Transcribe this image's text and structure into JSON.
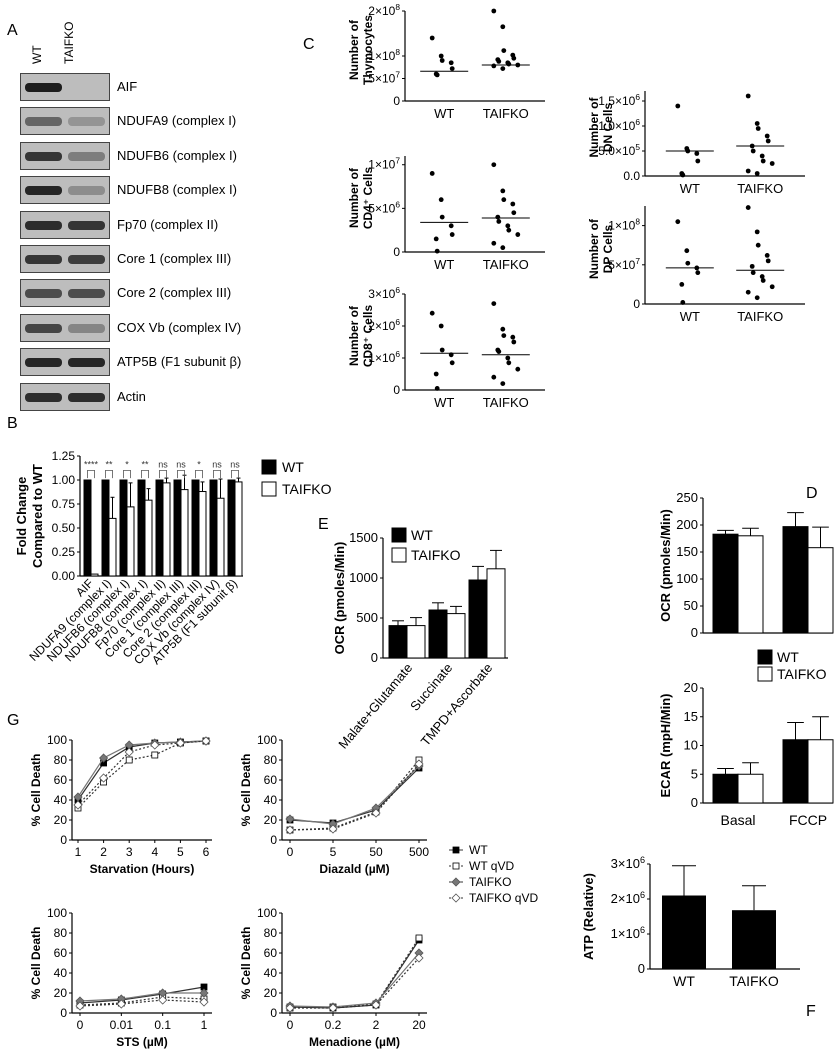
{
  "panels": {
    "A": "A",
    "B": "B",
    "C": "C",
    "D": "D",
    "E": "E",
    "F": "F",
    "G": "G"
  },
  "blot": {
    "lanes": [
      "WT",
      "TAIFKO"
    ],
    "rows": [
      {
        "label": "AIF",
        "wt": 1.0,
        "ko": 0.0
      },
      {
        "label": "NDUFA9 (complex I)",
        "wt": 0.55,
        "ko": 0.25
      },
      {
        "label": "NDUFB6 (complex I)",
        "wt": 0.85,
        "ko": 0.4
      },
      {
        "label": "NDUFB8 (complex I)",
        "wt": 0.95,
        "ko": 0.3
      },
      {
        "label": "Fp70 (complex II)",
        "wt": 0.9,
        "ko": 0.85
      },
      {
        "label": "Core 1 (complex III)",
        "wt": 0.85,
        "ko": 0.8
      },
      {
        "label": "Core 2 (complex III)",
        "wt": 0.7,
        "ko": 0.7
      },
      {
        "label": "COX Vb (complex IV)",
        "wt": 0.75,
        "ko": 0.35
      },
      {
        "label": "ATP5B (F1 subunit β)",
        "wt": 0.95,
        "ko": 0.95
      },
      {
        "label": "Actin",
        "wt": 0.9,
        "ko": 0.9
      }
    ]
  },
  "chart_data": [
    {
      "id": "B",
      "type": "bar",
      "ylabel": "Fold Change Compared to WT",
      "ylim": [
        0,
        1.25
      ],
      "yticks": [
        "0.00",
        "0.25",
        "0.50",
        "0.75",
        "1.00",
        "1.25"
      ],
      "categories": [
        "AIF",
        "NDUFA9 (complex I)",
        "NDUFB6 (complex I)",
        "NDUFB8 (complex I)",
        "Fp70 (complex II)",
        "Core 1 (complex III)",
        "Core 2 (complex III)",
        "COX Vb (complex IV)",
        "ATP5B (F1 subunit β)"
      ],
      "series": [
        {
          "name": "WT",
          "values": [
            1,
            1,
            1,
            1,
            1,
            1,
            1,
            1,
            1
          ],
          "errors": [
            0,
            0,
            0,
            0,
            0,
            0,
            0,
            0,
            0
          ]
        },
        {
          "name": "TAIFKO",
          "values": [
            0.02,
            0.6,
            0.72,
            0.79,
            0.97,
            0.9,
            0.88,
            0.81,
            0.98
          ],
          "errors": [
            0,
            0.22,
            0.25,
            0.12,
            0.05,
            0.15,
            0.1,
            0.2,
            0.04
          ]
        }
      ],
      "significance": [
        "****",
        "**",
        "*",
        "**",
        "ns",
        "ns",
        "*",
        "ns",
        "ns"
      ],
      "legend": "right"
    },
    {
      "id": "C-thymocytes",
      "type": "scatter",
      "ylabel": "Number of Thymocytes",
      "ylim": [
        0,
        200000000
      ],
      "yticks": [
        {
          "v": 0,
          "t": "0"
        },
        {
          "v": 50000000,
          "m": "5",
          "e": "7"
        },
        {
          "v": 100000000,
          "m": "1",
          "e": "8"
        },
        {
          "v": 200000000,
          "m": "2",
          "e": "8"
        }
      ],
      "categories": [
        "WT",
        "TAIFKO"
      ],
      "groups": [
        {
          "name": "WT",
          "values": [
            140000000,
            100000000,
            90000000,
            85000000,
            72000000,
            60000000,
            58000000
          ],
          "mean": 66000000
        },
        {
          "name": "TAIFKO",
          "values": [
            200000000,
            165000000,
            112000000,
            102000000,
            95000000,
            92000000,
            88000000,
            85000000,
            82000000,
            80000000,
            78000000,
            72000000
          ],
          "mean": 80000000
        }
      ]
    },
    {
      "id": "C-DN",
      "type": "scatter",
      "ylabel": "Number of DN Cells",
      "ylim": [
        0,
        1700000
      ],
      "yticks": [
        {
          "v": 0,
          "t": "0.0"
        },
        {
          "v": 500000,
          "m": "5.0",
          "e": "5"
        },
        {
          "v": 1000000,
          "m": "1.0",
          "e": "6"
        },
        {
          "v": 1500000,
          "m": "1.5",
          "e": "6"
        }
      ],
      "categories": [
        "WT",
        "TAIFKO"
      ],
      "groups": [
        {
          "name": "WT",
          "values": [
            1400000,
            550000,
            500000,
            450000,
            300000,
            50000,
            20000
          ],
          "mean": 500000
        },
        {
          "name": "TAIFKO",
          "values": [
            1600000,
            1050000,
            950000,
            800000,
            700000,
            600000,
            500000,
            400000,
            300000,
            250000,
            100000,
            50000
          ],
          "mean": 600000
        }
      ]
    },
    {
      "id": "C-CD4",
      "type": "scatter",
      "ylabel": "Number of CD4⁺ Cells",
      "ylim": [
        0,
        11000000
      ],
      "yticks": [
        {
          "v": 0,
          "t": "0"
        },
        {
          "v": 5000000,
          "m": "5",
          "e": "6"
        },
        {
          "v": 10000000,
          "m": "1",
          "e": "7"
        }
      ],
      "categories": [
        "WT",
        "TAIFKO"
      ],
      "groups": [
        {
          "name": "WT",
          "values": [
            9000000,
            6000000,
            4000000,
            3000000,
            2000000,
            1500000,
            100000
          ],
          "mean": 3400000
        },
        {
          "name": "TAIFKO",
          "values": [
            10000000,
            7000000,
            6000000,
            5500000,
            4500000,
            4000000,
            3500000,
            3000000,
            2500000,
            2000000,
            1000000,
            500000
          ],
          "mean": 3900000
        }
      ]
    },
    {
      "id": "C-DP",
      "type": "scatter",
      "ylabel": "Number of DP Cells",
      "ylim": [
        0,
        125000000
      ],
      "yticks": [
        {
          "v": 0,
          "t": "0"
        },
        {
          "v": 50000000,
          "m": "5",
          "e": "7"
        },
        {
          "v": 100000000,
          "m": "1",
          "e": "8"
        }
      ],
      "categories": [
        "WT",
        "TAIFKO"
      ],
      "groups": [
        {
          "name": "WT",
          "values": [
            105000000,
            68000000,
            52000000,
            46000000,
            40000000,
            25000000,
            2000000
          ],
          "mean": 46000000
        },
        {
          "name": "TAIFKO",
          "values": [
            123000000,
            92000000,
            75000000,
            62000000,
            55000000,
            48000000,
            40000000,
            35000000,
            30000000,
            22000000,
            15000000,
            8000000
          ],
          "mean": 43000000
        }
      ]
    },
    {
      "id": "C-CD8",
      "type": "scatter",
      "ylabel": "Number of CD8⁺ Cells",
      "ylim": [
        0,
        3000000
      ],
      "yticks": [
        {
          "v": 0,
          "t": "0"
        },
        {
          "v": 1000000,
          "m": "1",
          "e": "6"
        },
        {
          "v": 2000000,
          "m": "2",
          "e": "6"
        },
        {
          "v": 3000000,
          "m": "3",
          "e": "6"
        }
      ],
      "categories": [
        "WT",
        "TAIFKO"
      ],
      "groups": [
        {
          "name": "WT",
          "values": [
            2400000,
            2000000,
            1250000,
            1100000,
            850000,
            500000,
            50000
          ],
          "mean": 1150000
        },
        {
          "name": "TAIFKO",
          "values": [
            2700000,
            1900000,
            1700000,
            1650000,
            1500000,
            1250000,
            1200000,
            1000000,
            850000,
            650000,
            400000,
            200000
          ],
          "mean": 1100000
        }
      ]
    },
    {
      "id": "D-OCR",
      "type": "bar",
      "ylabel": "OCR (pmoles/Min)",
      "ylim": [
        0,
        250
      ],
      "yticks": [
        "0",
        "50",
        "100",
        "150",
        "200",
        "250"
      ],
      "categories": [
        "Basal",
        "FCCP"
      ],
      "series": [
        {
          "name": "WT",
          "values": [
            183,
            197
          ],
          "errors": [
            7,
            26
          ]
        },
        {
          "name": "TAIFKO",
          "values": [
            180,
            158
          ],
          "errors": [
            14,
            38
          ]
        }
      ]
    },
    {
      "id": "D-ECAR",
      "type": "bar",
      "ylabel": "ECAR (mpH/Min)",
      "ylim": [
        0,
        20
      ],
      "yticks": [
        "0",
        "5",
        "10",
        "15",
        "20"
      ],
      "categories": [
        "Basal",
        "FCCP"
      ],
      "series": [
        {
          "name": "WT",
          "values": [
            5,
            11
          ],
          "errors": [
            1,
            3
          ]
        },
        {
          "name": "TAIFKO",
          "values": [
            5,
            11
          ],
          "errors": [
            2,
            4
          ]
        }
      ],
      "legend": "top-right"
    },
    {
      "id": "E",
      "type": "bar",
      "ylabel": "OCR (pmoles/Min)",
      "ylim": [
        0,
        1500
      ],
      "yticks": [
        "0",
        "500",
        "1000",
        "1500"
      ],
      "categories": [
        "Malate+Glutamate",
        "Succinate",
        "TMPD+Ascorbate"
      ],
      "series": [
        {
          "name": "WT",
          "values": [
            405,
            600,
            975
          ],
          "errors": [
            60,
            90,
            170
          ]
        },
        {
          "name": "TAIFKO",
          "values": [
            405,
            555,
            1115
          ],
          "errors": [
            100,
            90,
            230
          ]
        }
      ],
      "legend": "top-left"
    },
    {
      "id": "F",
      "type": "bar",
      "ylabel": "ATP (Relative)",
      "ylim": [
        0,
        3000000
      ],
      "yticks": [
        {
          "v": 0,
          "t": "0"
        },
        {
          "v": 1000000,
          "m": "1",
          "e": "6"
        },
        {
          "v": 2000000,
          "m": "2",
          "e": "6"
        },
        {
          "v": 3000000,
          "m": "3",
          "e": "6"
        }
      ],
      "categories": [
        "WT",
        "TAIFKO"
      ],
      "values": [
        2100000,
        1680000
      ],
      "errors": [
        850000,
        700000
      ]
    },
    {
      "id": "G-starvation",
      "type": "line",
      "xlabel": "Starvation (Hours)",
      "ylabel": "% Cell Death",
      "x": [
        "1",
        "2",
        "3",
        "4",
        "5",
        "6"
      ],
      "ylim": [
        0,
        100
      ],
      "yticks": [
        "0",
        "20",
        "40",
        "60",
        "80",
        "100"
      ],
      "series": [
        {
          "name": "WT",
          "values": [
            40,
            77,
            93,
            97,
            98,
            99
          ]
        },
        {
          "name": "WT qVD",
          "values": [
            32,
            58,
            80,
            85,
            97,
            99
          ]
        },
        {
          "name": "TAIFKO",
          "values": [
            43,
            82,
            95,
            97,
            98,
            99
          ]
        },
        {
          "name": "TAIFKO qVD",
          "values": [
            35,
            62,
            88,
            95,
            97,
            99
          ]
        }
      ]
    },
    {
      "id": "G-diazald",
      "type": "line",
      "xlabel": "Diazald (µM)",
      "ylabel": "% Cell Death",
      "x": [
        "0",
        "5",
        "50",
        "500"
      ],
      "ylim": [
        0,
        100
      ],
      "yticks": [
        "0",
        "20",
        "40",
        "60",
        "80",
        "100"
      ],
      "series": [
        {
          "name": "WT",
          "values": [
            20,
            17,
            30,
            72
          ]
        },
        {
          "name": "WT qVD",
          "values": [
            10,
            12,
            28,
            80
          ]
        },
        {
          "name": "TAIFKO",
          "values": [
            21,
            16,
            32,
            74
          ]
        },
        {
          "name": "TAIFKO qVD",
          "values": [
            10,
            11,
            27,
            76
          ]
        }
      ]
    },
    {
      "id": "G-sts",
      "type": "line",
      "xlabel": "STS (µM)",
      "ylabel": "% Cell Death",
      "x": [
        "0",
        "0.01",
        "0.1",
        "1"
      ],
      "ylim": [
        0,
        100
      ],
      "yticks": [
        "0",
        "20",
        "40",
        "60",
        "80",
        "100"
      ],
      "series": [
        {
          "name": "WT",
          "values": [
            10,
            13,
            19,
            26
          ]
        },
        {
          "name": "WT qVD",
          "values": [
            8,
            10,
            16,
            14
          ]
        },
        {
          "name": "TAIFKO",
          "values": [
            12,
            14,
            20,
            20
          ]
        },
        {
          "name": "TAIFKO qVD",
          "values": [
            7,
            9,
            13,
            11
          ]
        }
      ]
    },
    {
      "id": "G-menadione",
      "type": "line",
      "xlabel": "Menadione (µM)",
      "ylabel": "% Cell Death",
      "x": [
        "0",
        "0.2",
        "2",
        "20"
      ],
      "ylim": [
        0,
        100
      ],
      "yticks": [
        "0",
        "20",
        "40",
        "60",
        "80",
        "100"
      ],
      "series": [
        {
          "name": "WT",
          "values": [
            6,
            5,
            8,
            73
          ]
        },
        {
          "name": "WT qVD",
          "values": [
            5,
            6,
            9,
            75
          ]
        },
        {
          "name": "TAIFKO",
          "values": [
            7,
            6,
            10,
            60
          ]
        },
        {
          "name": "TAIFKO qVD",
          "values": [
            5,
            5,
            8,
            55
          ]
        }
      ]
    }
  ],
  "colors": {
    "wt": "#000000",
    "taifko": "#ffffff",
    "ink": "#000000",
    "grey": "#888888"
  }
}
